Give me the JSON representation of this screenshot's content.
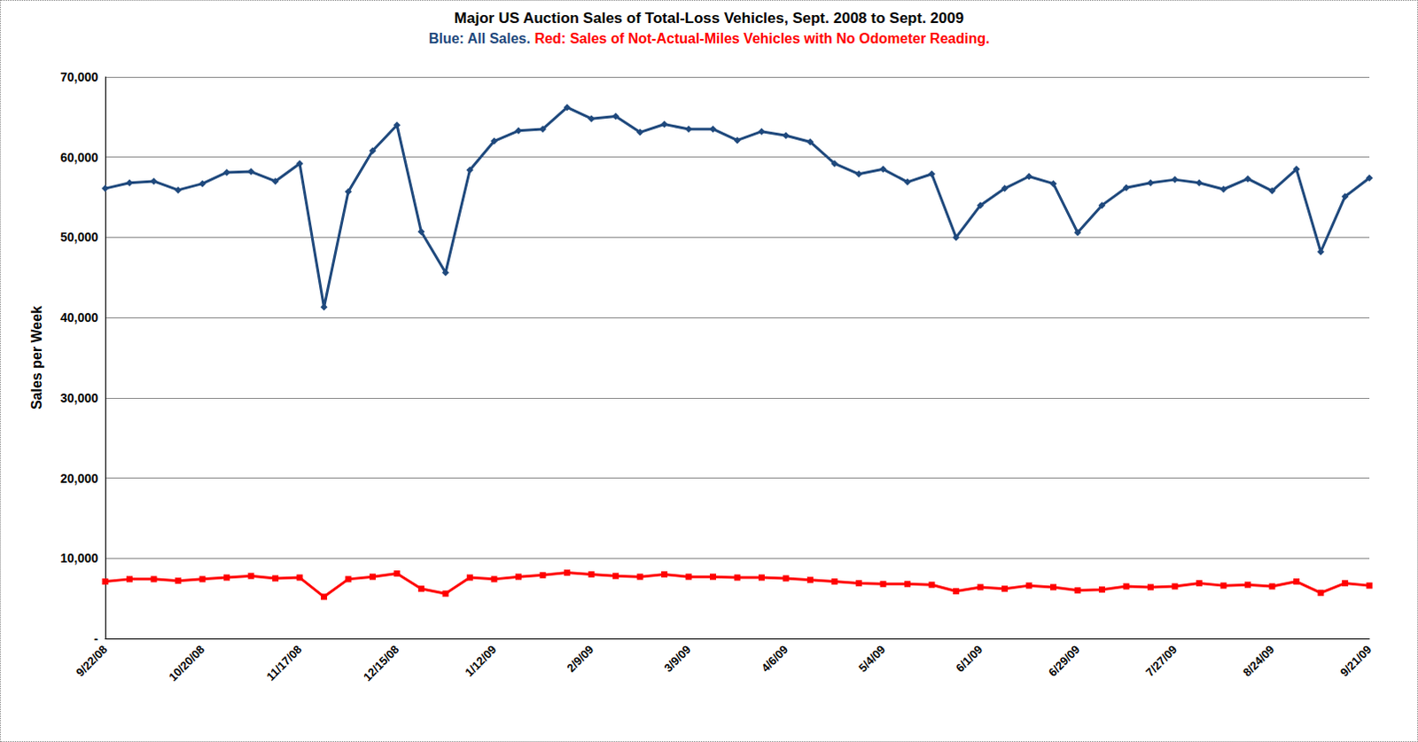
{
  "chart_data": {
    "type": "line",
    "title": "Major US Auction Sales of Total-Loss Vehicles, Sept. 2008 to Sept. 2009",
    "y_label": "Sales per Week",
    "categories": [
      "9/22/08",
      null,
      null,
      null,
      "10/20/08",
      null,
      null,
      null,
      "11/17/08",
      null,
      null,
      null,
      "12/15/08",
      null,
      null,
      null,
      "1/12/09",
      null,
      null,
      null,
      "2/9/09",
      null,
      null,
      null,
      "3/9/09",
      null,
      null,
      null,
      "4/6/09",
      null,
      null,
      null,
      "5/4/09",
      null,
      null,
      null,
      "6/1/09",
      null,
      null,
      null,
      "6/29/09",
      null,
      null,
      null,
      "7/27/09",
      null,
      null,
      null,
      "8/24/09",
      null,
      null,
      null,
      "9/21/09"
    ],
    "series": [
      {
        "name": "Blue: All Sales.",
        "color": "#1f497d",
        "marker": "diamond",
        "values": [
          56100,
          56800,
          57000,
          55900,
          56700,
          58100,
          58200,
          57000,
          59200,
          41300,
          55700,
          60800,
          64000,
          50700,
          45600,
          58400,
          62000,
          63300,
          63500,
          66200,
          64800,
          65100,
          63100,
          64100,
          63500,
          63500,
          62100,
          63200,
          62700,
          61900,
          59200,
          57900,
          58500,
          56900,
          57900,
          50000,
          54000,
          56100,
          57600,
          56700,
          50600,
          54000,
          56200,
          56800,
          57200,
          56800,
          56000,
          57300,
          55800,
          58500,
          48200,
          55100,
          57400
        ]
      },
      {
        "name": "Red: Sales of Not-Actual-Miles Vehicles with No Odometer Reading.",
        "color": "#ff0000",
        "marker": "square",
        "values": [
          7100,
          7400,
          7400,
          7200,
          7400,
          7600,
          7800,
          7500,
          7600,
          5200,
          7400,
          7700,
          8100,
          6200,
          5600,
          7600,
          7400,
          7700,
          7900,
          8200,
          8000,
          7800,
          7700,
          8000,
          7700,
          7700,
          7600,
          7600,
          7500,
          7300,
          7100,
          6900,
          6800,
          6800,
          6700,
          5900,
          6400,
          6200,
          6600,
          6400,
          6000,
          6100,
          6500,
          6400,
          6500,
          6900,
          6600,
          6700,
          6500,
          7100,
          5700,
          6900,
          6600
        ]
      }
    ],
    "ylim": [
      0,
      70000
    ],
    "yticks": [
      {
        "value": 0,
        "label": "-"
      },
      {
        "value": 10000,
        "label": "10,000"
      },
      {
        "value": 20000,
        "label": "20,000"
      },
      {
        "value": 30000,
        "label": "30,000"
      },
      {
        "value": 40000,
        "label": "40,000"
      },
      {
        "value": 50000,
        "label": "50,000"
      },
      {
        "value": 60000,
        "label": "60,000"
      },
      {
        "value": 70000,
        "label": "70,000"
      }
    ],
    "grid": true
  }
}
